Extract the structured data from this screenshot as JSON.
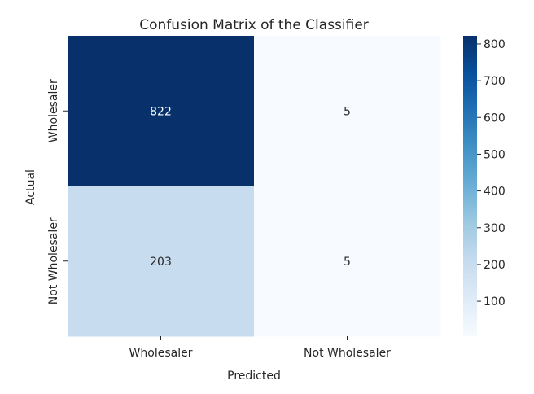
{
  "chart_data": {
    "type": "heatmap",
    "title": "Confusion Matrix of the Classifier",
    "xlabel": "Predicted",
    "ylabel": "Actual",
    "x_categories": [
      "Wholesaler",
      "Not Wholesaler"
    ],
    "y_categories": [
      "Wholesaler",
      "Not Wholesaler"
    ],
    "values": [
      [
        822,
        5
      ],
      [
        203,
        5
      ]
    ],
    "colormap": "Blues",
    "colorbar": {
      "min": 5,
      "max": 822,
      "ticks": [
        100,
        200,
        300,
        400,
        500,
        600,
        700,
        800
      ]
    },
    "grid": false,
    "legend": "colorbar-right"
  }
}
